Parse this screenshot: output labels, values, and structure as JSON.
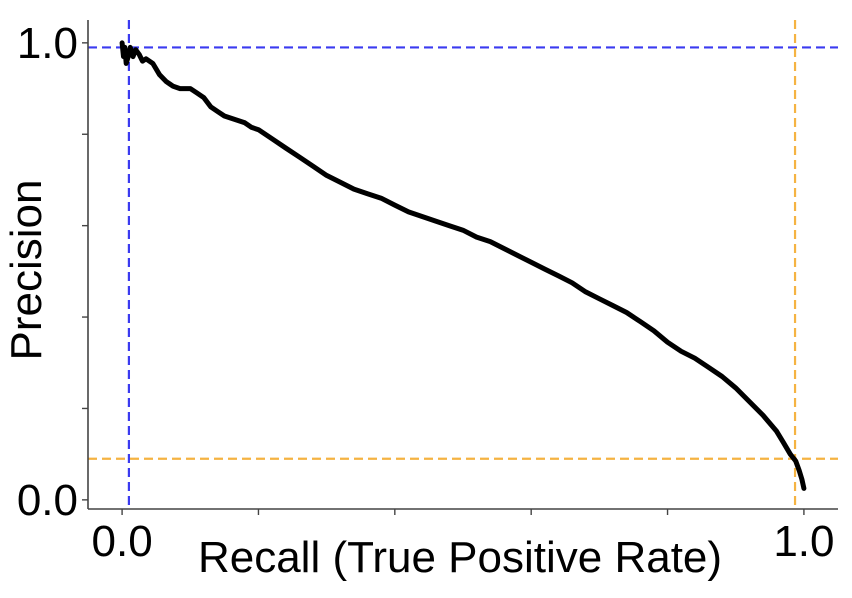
{
  "chart_data": {
    "type": "line",
    "title": "",
    "xlabel": "Recall (True Positive Rate)",
    "ylabel": "Precision",
    "xlim": [
      -0.05,
      1.05
    ],
    "ylim": [
      -0.02,
      1.05
    ],
    "x_ticks": [
      0.0,
      0.2,
      0.4,
      0.6,
      0.8,
      1.0
    ],
    "x_tick_labels": [
      "0.0",
      "",
      "",
      "",
      "",
      "1.0"
    ],
    "y_ticks": [
      0.0,
      0.2,
      0.4,
      0.6,
      0.8,
      1.0
    ],
    "y_tick_labels": [
      "0.0",
      "",
      "",
      "",
      "",
      "1.0"
    ],
    "grid": false,
    "reference_lines": [
      {
        "orientation": "horizontal",
        "value": 0.99,
        "color": "#3b3bf0",
        "style": "dashed"
      },
      {
        "orientation": "vertical",
        "value": 0.01,
        "color": "#3b3bf0",
        "style": "dashed"
      },
      {
        "orientation": "horizontal",
        "value": 0.09,
        "color": "#f5b342",
        "style": "dashed"
      },
      {
        "orientation": "vertical",
        "value": 0.987,
        "color": "#f5b342",
        "style": "dashed"
      }
    ],
    "series": [
      {
        "color": "#000000",
        "x": [
          0.0,
          0.002,
          0.004,
          0.006,
          0.009,
          0.012,
          0.016,
          0.02,
          0.025,
          0.03,
          0.035,
          0.045,
          0.055,
          0.065,
          0.07,
          0.075,
          0.085,
          0.1,
          0.11,
          0.12,
          0.13,
          0.14,
          0.15,
          0.16,
          0.17,
          0.18,
          0.19,
          0.2,
          0.22,
          0.24,
          0.26,
          0.28,
          0.3,
          0.32,
          0.34,
          0.36,
          0.38,
          0.4,
          0.42,
          0.44,
          0.46,
          0.48,
          0.5,
          0.52,
          0.54,
          0.56,
          0.58,
          0.6,
          0.62,
          0.64,
          0.66,
          0.68,
          0.7,
          0.72,
          0.74,
          0.76,
          0.78,
          0.8,
          0.82,
          0.84,
          0.86,
          0.88,
          0.9,
          0.92,
          0.94,
          0.96,
          0.97,
          0.98,
          0.988,
          0.993,
          0.997,
          1.0
        ],
        "y": [
          1.0,
          0.97,
          0.99,
          0.955,
          0.97,
          0.99,
          0.97,
          0.985,
          0.975,
          0.96,
          0.965,
          0.955,
          0.93,
          0.915,
          0.91,
          0.905,
          0.9,
          0.9,
          0.89,
          0.88,
          0.86,
          0.85,
          0.84,
          0.835,
          0.83,
          0.825,
          0.815,
          0.81,
          0.79,
          0.77,
          0.75,
          0.73,
          0.71,
          0.695,
          0.68,
          0.67,
          0.66,
          0.645,
          0.63,
          0.62,
          0.61,
          0.6,
          0.59,
          0.575,
          0.565,
          0.55,
          0.535,
          0.52,
          0.505,
          0.49,
          0.475,
          0.455,
          0.44,
          0.425,
          0.41,
          0.39,
          0.37,
          0.345,
          0.325,
          0.31,
          0.29,
          0.27,
          0.245,
          0.215,
          0.185,
          0.15,
          0.125,
          0.1,
          0.085,
          0.065,
          0.045,
          0.025
        ]
      }
    ]
  }
}
